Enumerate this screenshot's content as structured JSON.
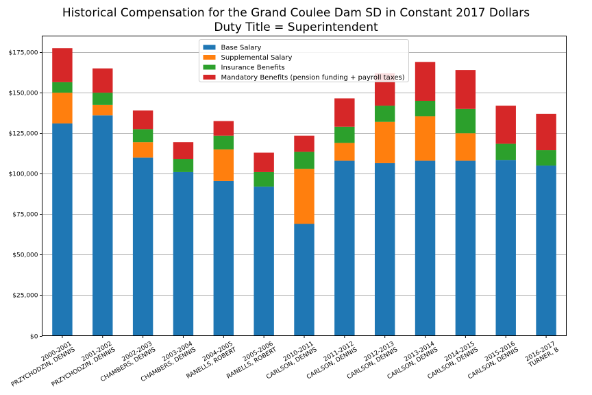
{
  "chart_data": {
    "type": "bar",
    "stacked": true,
    "title": "Historical Compensation for the Grand Coulee Dam SD in Constant 2017 Dollars",
    "subtitle": "Duty Title = Superintendent",
    "xlabel": "",
    "ylabel": "",
    "ylim": [
      0,
      185000
    ],
    "yticks": [
      0,
      25000,
      50000,
      75000,
      100000,
      125000,
      150000,
      175000
    ],
    "ytick_labels": [
      "$0",
      "$25,000",
      "$50,000",
      "$75,000",
      "$100,000",
      "$125,000",
      "$150,000",
      "$175,000"
    ],
    "grid": "horizontal",
    "legend_position": "top-center",
    "categories": [
      [
        "2000-2001",
        "PRZYCHODZIN, DENNIS"
      ],
      [
        "2001-2002",
        "PRZYCHODZIN, DENNIS"
      ],
      [
        "2002-2003",
        "CHAMBERS, DENNIS"
      ],
      [
        "2003-2004",
        "CHAMBERS, DENNIS"
      ],
      [
        "2004-2005",
        "RANELLS, ROBERT"
      ],
      [
        "2005-2006",
        "RANELLS, ROBERT"
      ],
      [
        "2010-2011",
        "CARLSON, DENNIS"
      ],
      [
        "2011-2012",
        "CARLSON, DENNIS"
      ],
      [
        "2012-2013",
        "CARLSON, DENNIS"
      ],
      [
        "2013-2014",
        "CARLSON, DENNIS"
      ],
      [
        "2014-2015",
        "CARLSON, DENNIS"
      ],
      [
        "2015-2016",
        "CARLSON, DENNIS"
      ],
      [
        "2016-2017",
        "TURNER, B"
      ]
    ],
    "series": [
      {
        "name": "Base Salary",
        "color": "#1f77b4",
        "values": [
          131000,
          136000,
          110000,
          101000,
          95500,
          92000,
          69000,
          108000,
          106500,
          108000,
          108000,
          108500,
          105000
        ]
      },
      {
        "name": "Supplemental Salary",
        "color": "#ff7f0e",
        "values": [
          19000,
          6500,
          9500,
          0,
          19500,
          0,
          34000,
          11000,
          25500,
          27500,
          17000,
          0,
          0
        ]
      },
      {
        "name": "Insurance Benefits",
        "color": "#2ca02c",
        "values": [
          6500,
          7500,
          8000,
          8000,
          8500,
          9000,
          10500,
          10000,
          10000,
          9500,
          15000,
          10000,
          9500
        ]
      },
      {
        "name": "Mandatory Benefits (pension funding + payroll taxes)",
        "color": "#d62728",
        "values": [
          21000,
          15000,
          11500,
          10500,
          9000,
          12000,
          10000,
          17500,
          20000,
          24000,
          24000,
          23500,
          22500
        ]
      }
    ]
  }
}
